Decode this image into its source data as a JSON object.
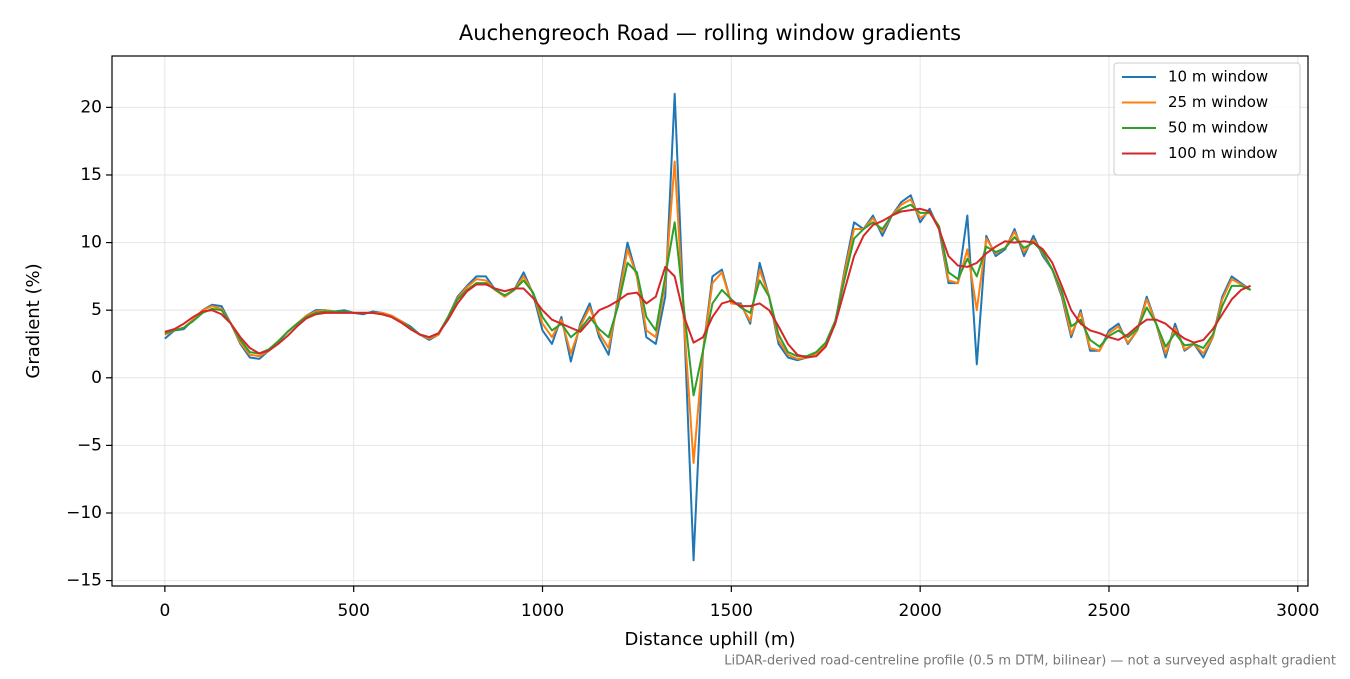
{
  "chart_data": {
    "type": "line",
    "title": "Auchengreoch Road — rolling window gradients",
    "x_label": "Distance uphill (m)",
    "y_label": "Gradient (%)",
    "footnote": "LiDAR-derived road-centreline profile (0.5 m DTM, bilinear) — not a surveyed asphalt gradient",
    "grid": true,
    "legend": "upper right",
    "xlim": [
      -140,
      3027
    ],
    "ylim": [
      -15.4,
      23.8
    ],
    "xticks": [
      0,
      500,
      1000,
      1500,
      2000,
      2500,
      3000
    ],
    "yticks": [
      {
        "value": -15,
        "label": "−15"
      },
      {
        "value": -10,
        "label": "−10"
      },
      {
        "value": -5,
        "label": "−5"
      },
      0,
      5,
      10,
      15,
      20
    ],
    "x": [
      0,
      25,
      50,
      75,
      100,
      125,
      150,
      175,
      200,
      225,
      250,
      275,
      300,
      325,
      350,
      375,
      400,
      425,
      450,
      475,
      500,
      525,
      550,
      575,
      600,
      625,
      650,
      675,
      700,
      725,
      750,
      775,
      800,
      825,
      850,
      875,
      900,
      925,
      950,
      975,
      1000,
      1025,
      1050,
      1075,
      1100,
      1125,
      1150,
      1175,
      1200,
      1225,
      1250,
      1275,
      1300,
      1325,
      1350,
      1375,
      1400,
      1425,
      1450,
      1475,
      1500,
      1525,
      1550,
      1575,
      1600,
      1625,
      1650,
      1675,
      1700,
      1725,
      1750,
      1775,
      1800,
      1825,
      1850,
      1875,
      1900,
      1925,
      1950,
      1975,
      2000,
      2025,
      2050,
      2075,
      2100,
      2125,
      2150,
      2175,
      2200,
      2225,
      2250,
      2275,
      2300,
      2325,
      2350,
      2375,
      2400,
      2425,
      2450,
      2475,
      2500,
      2525,
      2550,
      2575,
      2600,
      2625,
      2650,
      2675,
      2700,
      2725,
      2750,
      2775,
      2800,
      2825,
      2850,
      2875
    ],
    "series": [
      {
        "name": "10 m window",
        "color": "#1f77b4",
        "values": [
          2.9,
          3.5,
          3.6,
          4.3,
          5.0,
          5.4,
          5.3,
          4.0,
          2.5,
          1.5,
          1.4,
          2.0,
          2.6,
          3.4,
          4.0,
          4.6,
          5.0,
          5.0,
          4.9,
          5.0,
          4.8,
          4.7,
          4.9,
          4.8,
          4.6,
          4.2,
          3.8,
          3.2,
          2.8,
          3.2,
          4.5,
          6.0,
          6.8,
          7.5,
          7.5,
          6.5,
          6.0,
          6.5,
          7.8,
          6.2,
          3.5,
          2.5,
          4.5,
          1.2,
          4.0,
          5.5,
          3.0,
          1.7,
          6.0,
          10.0,
          7.5,
          3.0,
          2.5,
          6.0,
          21.0,
          4.0,
          -13.5,
          2.0,
          7.5,
          8.0,
          5.5,
          5.5,
          4.0,
          8.5,
          6.0,
          2.5,
          1.5,
          1.3,
          1.5,
          1.8,
          2.5,
          4.0,
          8.0,
          11.5,
          11.0,
          12.0,
          10.5,
          12.0,
          13.0,
          13.5,
          11.5,
          12.5,
          11.0,
          7.0,
          7.0,
          12.0,
          1.0,
          10.5,
          9.0,
          9.5,
          11.0,
          9.0,
          10.5,
          9.0,
          8.0,
          6.0,
          3.0,
          5.0,
          2.0,
          2.0,
          3.5,
          4.0,
          2.5,
          3.5,
          6.0,
          4.0,
          1.5,
          4.0,
          2.0,
          2.5,
          1.5,
          3.0,
          6.0,
          7.5,
          7.0,
          6.5
        ]
      },
      {
        "name": "25 m window",
        "color": "#ff7f0e",
        "values": [
          3.2,
          3.5,
          3.7,
          4.3,
          5.0,
          5.3,
          5.1,
          4.0,
          2.6,
          1.7,
          1.6,
          2.0,
          2.7,
          3.4,
          4.0,
          4.6,
          4.9,
          5.0,
          4.9,
          4.9,
          4.8,
          4.8,
          4.8,
          4.8,
          4.6,
          4.2,
          3.7,
          3.2,
          2.9,
          3.2,
          4.5,
          5.9,
          6.7,
          7.3,
          7.2,
          6.5,
          6.0,
          6.5,
          7.5,
          6.3,
          4.0,
          3.0,
          4.3,
          1.8,
          3.8,
          5.2,
          3.3,
          2.2,
          5.7,
          9.5,
          7.5,
          3.5,
          3.0,
          7.0,
          16.0,
          4.0,
          -6.3,
          2.0,
          7.0,
          7.8,
          5.5,
          5.4,
          4.2,
          8.0,
          6.0,
          2.8,
          1.7,
          1.4,
          1.5,
          1.8,
          2.5,
          4.0,
          7.8,
          11.0,
          11.0,
          11.8,
          10.8,
          12.0,
          12.8,
          13.2,
          11.8,
          12.3,
          11.2,
          7.2,
          7.0,
          9.5,
          5.0,
          10.3,
          9.2,
          9.6,
          10.8,
          9.3,
          10.2,
          9.2,
          8.0,
          6.2,
          3.2,
          4.8,
          2.2,
          2.0,
          3.3,
          3.8,
          2.6,
          3.5,
          5.8,
          4.0,
          1.8,
          3.7,
          2.1,
          2.5,
          1.8,
          3.0,
          5.8,
          7.3,
          6.9,
          6.5
        ]
      },
      {
        "name": "50 m window",
        "color": "#2ca02c",
        "values": [
          3.3,
          3.5,
          3.7,
          4.2,
          4.8,
          5.1,
          5.0,
          4.0,
          2.8,
          1.9,
          1.8,
          2.1,
          2.7,
          3.4,
          4.0,
          4.5,
          4.8,
          4.9,
          4.9,
          4.9,
          4.8,
          4.8,
          4.8,
          4.7,
          4.5,
          4.1,
          3.7,
          3.2,
          3.0,
          3.3,
          4.5,
          5.8,
          6.5,
          7.0,
          7.0,
          6.5,
          6.1,
          6.5,
          7.2,
          6.3,
          4.5,
          3.5,
          4.0,
          3.0,
          3.6,
          4.5,
          3.6,
          3.0,
          5.3,
          8.5,
          7.8,
          4.5,
          3.5,
          7.5,
          11.5,
          5.0,
          -1.3,
          2.0,
          5.5,
          6.5,
          5.8,
          5.2,
          4.8,
          7.2,
          6.0,
          3.2,
          1.9,
          1.6,
          1.6,
          1.9,
          2.6,
          4.2,
          7.3,
          10.3,
          11.0,
          11.5,
          11.0,
          12.0,
          12.5,
          12.8,
          12.2,
          12.2,
          11.2,
          7.8,
          7.3,
          8.8,
          7.5,
          9.7,
          9.3,
          9.6,
          10.4,
          9.6,
          10.0,
          9.3,
          8.0,
          6.4,
          3.8,
          4.3,
          2.8,
          2.3,
          3.1,
          3.5,
          3.0,
          3.6,
          5.2,
          4.0,
          2.3,
          3.3,
          2.4,
          2.5,
          2.2,
          3.2,
          5.3,
          6.8,
          6.8,
          6.5
        ]
      },
      {
        "name": "100 m window",
        "color": "#d62728",
        "values": [
          3.4,
          3.6,
          4.0,
          4.5,
          4.9,
          5.0,
          4.7,
          4.0,
          3.0,
          2.2,
          1.8,
          2.0,
          2.5,
          3.1,
          3.8,
          4.4,
          4.7,
          4.8,
          4.8,
          4.8,
          4.8,
          4.8,
          4.8,
          4.7,
          4.5,
          4.1,
          3.6,
          3.2,
          3.0,
          3.3,
          4.3,
          5.5,
          6.4,
          6.9,
          6.9,
          6.6,
          6.4,
          6.6,
          6.6,
          5.9,
          5.0,
          4.3,
          4.0,
          3.7,
          3.4,
          4.2,
          5.0,
          5.3,
          5.7,
          6.2,
          6.3,
          5.5,
          6.0,
          8.2,
          7.5,
          4.5,
          2.6,
          3.0,
          4.5,
          5.5,
          5.7,
          5.3,
          5.3,
          5.5,
          5.0,
          3.8,
          2.5,
          1.7,
          1.5,
          1.6,
          2.3,
          4.0,
          6.5,
          9.0,
          10.5,
          11.3,
          11.6,
          12.0,
          12.3,
          12.4,
          12.5,
          12.3,
          11.0,
          9.0,
          8.3,
          8.2,
          8.5,
          9.2,
          9.7,
          10.1,
          10.0,
          10.1,
          10.0,
          9.5,
          8.5,
          6.8,
          5.0,
          4.0,
          3.5,
          3.3,
          3.0,
          2.8,
          3.2,
          3.8,
          4.3,
          4.3,
          4.0,
          3.4,
          2.9,
          2.6,
          2.8,
          3.6,
          4.7,
          5.8,
          6.5,
          6.8
        ]
      }
    ]
  }
}
